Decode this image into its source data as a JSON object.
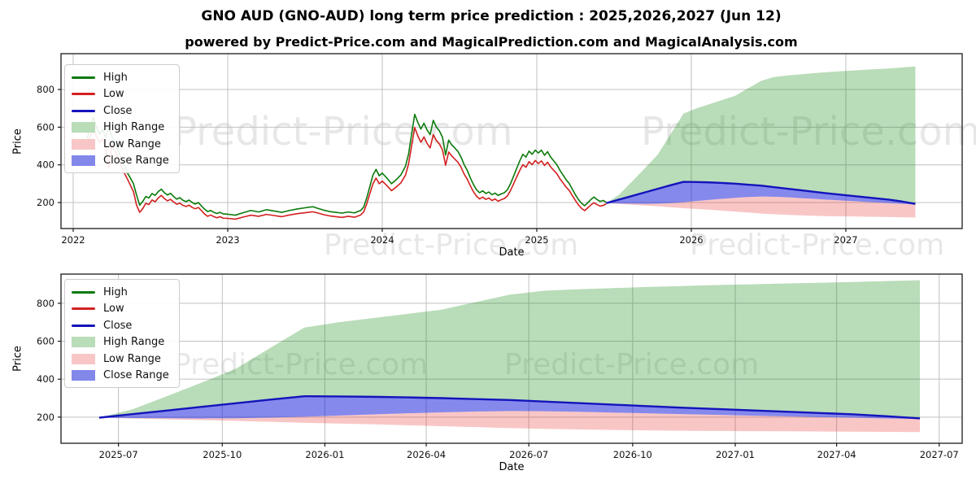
{
  "figure": {
    "title": "GNO AUD (GNO-AUD) long term price prediction : 2025,2026,2027 (Jun 12)",
    "subtitle": "powered by Predict-Price.com and MagicalPrediction.com and MagicalAnalysis.com",
    "watermark": "Predict-Price.com"
  },
  "colors": {
    "high_line": "#0a7a0a",
    "low_line": "#d32020",
    "close_line": "#1414bb",
    "high_range_fill": "#b9dcb9",
    "low_range_fill": "#f8c6c6",
    "close_range_fill": "#8287ea",
    "grid": "#c0c0c0",
    "spine": "#1a1a1a"
  },
  "legend": {
    "items": [
      {
        "label": "High",
        "type": "line",
        "color": "#0a7a0a"
      },
      {
        "label": "Low",
        "type": "line",
        "color": "#d32020"
      },
      {
        "label": "Close",
        "type": "line",
        "color": "#1414bb"
      },
      {
        "label": "High Range",
        "type": "patch",
        "color": "#b9dcb9"
      },
      {
        "label": "Low Range",
        "type": "patch",
        "color": "#f8c6c6"
      },
      {
        "label": "Close Range",
        "type": "patch",
        "color": "#8287ea"
      }
    ]
  },
  "chart_data": [
    {
      "type": "line",
      "title": "",
      "xlabel": "Date",
      "ylabel": "Price",
      "grid": true,
      "legend_position": "upper left",
      "xlim": [
        2021.921,
        2027.753
      ],
      "ylim": [
        62,
        990
      ],
      "xticks": [
        {
          "v": 2022,
          "label": "2022"
        },
        {
          "v": 2023,
          "label": "2023"
        },
        {
          "v": 2024,
          "label": "2024"
        },
        {
          "v": 2025,
          "label": "2025"
        },
        {
          "v": 2026,
          "label": "2026"
        },
        {
          "v": 2027,
          "label": "2027"
        }
      ],
      "yticks": [
        {
          "v": 200,
          "label": "200"
        },
        {
          "v": 400,
          "label": "400"
        },
        {
          "v": 600,
          "label": "600"
        },
        {
          "v": 800,
          "label": "800"
        }
      ],
      "history_series_note": "historical daily High(green)/Low(red) lines, points [year, high, low]",
      "history": [
        [
          2022.09,
          540,
          500
        ],
        [
          2022.11,
          595,
          548
        ],
        [
          2022.13,
          650,
          588
        ],
        [
          2022.15,
          602,
          552
        ],
        [
          2022.17,
          562,
          518
        ],
        [
          2022.19,
          588,
          538
        ],
        [
          2022.21,
          545,
          498
        ],
        [
          2022.23,
          598,
          382
        ],
        [
          2022.25,
          552,
          510
        ],
        [
          2022.27,
          518,
          472
        ],
        [
          2022.29,
          478,
          436
        ],
        [
          2022.31,
          438,
          398
        ],
        [
          2022.33,
          398,
          358
        ],
        [
          2022.35,
          358,
          326
        ],
        [
          2022.37,
          330,
          292
        ],
        [
          2022.39,
          300,
          258
        ],
        [
          2022.41,
          240,
          186
        ],
        [
          2022.43,
          186,
          148
        ],
        [
          2022.45,
          206,
          168
        ],
        [
          2022.47,
          232,
          196
        ],
        [
          2022.49,
          224,
          189
        ],
        [
          2022.51,
          248,
          214
        ],
        [
          2022.53,
          238,
          204
        ],
        [
          2022.55,
          258,
          224
        ],
        [
          2022.57,
          271,
          238
        ],
        [
          2022.59,
          252,
          221
        ],
        [
          2022.61,
          240,
          209
        ],
        [
          2022.63,
          249,
          217
        ],
        [
          2022.65,
          232,
          203
        ],
        [
          2022.67,
          218,
          191
        ],
        [
          2022.69,
          226,
          197
        ],
        [
          2022.71,
          212,
          185
        ],
        [
          2022.73,
          205,
          179
        ],
        [
          2022.75,
          213,
          186
        ],
        [
          2022.77,
          200,
          174
        ],
        [
          2022.79,
          192,
          167
        ],
        [
          2022.81,
          200,
          174
        ],
        [
          2022.83,
          182,
          157
        ],
        [
          2022.85,
          165,
          139
        ],
        [
          2022.87,
          152,
          127
        ],
        [
          2022.89,
          158,
          134
        ],
        [
          2022.91,
          148,
          125
        ],
        [
          2022.93,
          142,
          119
        ],
        [
          2022.95,
          148,
          125
        ],
        [
          2022.97,
          140,
          117
        ],
        [
          2023.0,
          138,
          116
        ],
        [
          2023.05,
          133,
          112
        ],
        [
          2023.1,
          146,
          123
        ],
        [
          2023.15,
          158,
          133
        ],
        [
          2023.2,
          150,
          127
        ],
        [
          2023.25,
          162,
          137
        ],
        [
          2023.3,
          155,
          131
        ],
        [
          2023.35,
          148,
          125
        ],
        [
          2023.4,
          158,
          134
        ],
        [
          2023.45,
          166,
          141
        ],
        [
          2023.5,
          172,
          146
        ],
        [
          2023.55,
          178,
          151
        ],
        [
          2023.58,
          170,
          145
        ],
        [
          2023.62,
          160,
          136
        ],
        [
          2023.66,
          152,
          129
        ],
        [
          2023.7,
          148,
          125
        ],
        [
          2023.74,
          144,
          121
        ],
        [
          2023.78,
          150,
          127
        ],
        [
          2023.82,
          145,
          122
        ],
        [
          2023.86,
          158,
          134
        ],
        [
          2023.88,
          176,
          150
        ],
        [
          2023.9,
          226,
          194
        ],
        [
          2023.92,
          286,
          248
        ],
        [
          2023.94,
          346,
          300
        ],
        [
          2023.96,
          376,
          330
        ],
        [
          2023.98,
          342,
          300
        ],
        [
          2024.0,
          356,
          314
        ],
        [
          2024.03,
          330,
          290
        ],
        [
          2024.06,
          300,
          263
        ],
        [
          2024.09,
          321,
          282
        ],
        [
          2024.12,
          346,
          304
        ],
        [
          2024.15,
          392,
          345
        ],
        [
          2024.17,
          456,
          404
        ],
        [
          2024.19,
          562,
          500
        ],
        [
          2024.21,
          668,
          598
        ],
        [
          2024.23,
          626,
          554
        ],
        [
          2024.25,
          590,
          520
        ],
        [
          2024.27,
          621,
          548
        ],
        [
          2024.29,
          585,
          514
        ],
        [
          2024.31,
          560,
          490
        ],
        [
          2024.33,
          636,
          560
        ],
        [
          2024.35,
          601,
          530
        ],
        [
          2024.37,
          580,
          511
        ],
        [
          2024.39,
          546,
          479
        ],
        [
          2024.41,
          452,
          398
        ],
        [
          2024.43,
          531,
          468
        ],
        [
          2024.45,
          506,
          447
        ],
        [
          2024.47,
          489,
          430
        ],
        [
          2024.49,
          471,
          414
        ],
        [
          2024.51,
          441,
          387
        ],
        [
          2024.53,
          401,
          351
        ],
        [
          2024.55,
          371,
          324
        ],
        [
          2024.57,
          331,
          289
        ],
        [
          2024.59,
          296,
          257
        ],
        [
          2024.61,
          268,
          234
        ],
        [
          2024.63,
          252,
          219
        ],
        [
          2024.65,
          262,
          229
        ],
        [
          2024.67,
          248,
          217
        ],
        [
          2024.69,
          256,
          224
        ],
        [
          2024.71,
          242,
          211
        ],
        [
          2024.73,
          250,
          219
        ],
        [
          2024.75,
          238,
          207
        ],
        [
          2024.77,
          246,
          215
        ],
        [
          2024.79,
          252,
          221
        ],
        [
          2024.81,
          268,
          235
        ],
        [
          2024.83,
          300,
          264
        ],
        [
          2024.85,
          340,
          299
        ],
        [
          2024.87,
          381,
          336
        ],
        [
          2024.89,
          421,
          371
        ],
        [
          2024.91,
          456,
          401
        ],
        [
          2024.93,
          441,
          387
        ],
        [
          2024.95,
          473,
          417
        ],
        [
          2024.97,
          456,
          401
        ],
        [
          2024.99,
          478,
          423
        ],
        [
          2025.01,
          463,
          407
        ],
        [
          2025.03,
          478,
          421
        ],
        [
          2025.05,
          451,
          397
        ],
        [
          2025.07,
          470,
          414
        ],
        [
          2025.09,
          441,
          389
        ],
        [
          2025.11,
          421,
          371
        ],
        [
          2025.13,
          401,
          353
        ],
        [
          2025.15,
          371,
          326
        ],
        [
          2025.17,
          346,
          304
        ],
        [
          2025.19,
          321,
          282
        ],
        [
          2025.21,
          301,
          264
        ],
        [
          2025.23,
          271,
          237
        ],
        [
          2025.25,
          241,
          211
        ],
        [
          2025.27,
          216,
          187
        ],
        [
          2025.29,
          196,
          169
        ],
        [
          2025.31,
          183,
          157
        ],
        [
          2025.33,
          199,
          172
        ],
        [
          2025.35,
          216,
          187
        ],
        [
          2025.37,
          229,
          199
        ],
        [
          2025.39,
          216,
          189
        ],
        [
          2025.41,
          206,
          181
        ],
        [
          2025.43,
          211,
          185
        ],
        [
          2025.45,
          201,
          193
        ]
      ],
      "prediction_note": "monthly forecast Jun-12-2025 to Jun-2027; bands: high range = close..high, close range = close_range_bottom..close, low range = low..close_range_bottom",
      "prediction": {
        "x": [
          2025.45,
          2025.533,
          2025.617,
          2025.7,
          2025.783,
          2025.867,
          2025.95,
          2026.033,
          2026.117,
          2026.2,
          2026.283,
          2026.367,
          2026.45,
          2026.533,
          2026.617,
          2026.7,
          2026.783,
          2026.867,
          2026.95,
          2027.033,
          2027.117,
          2027.2,
          2027.283,
          2027.367,
          2027.45
        ],
        "high": [
          197,
          242,
          312,
          382,
          455,
          565,
          672,
          700,
          722,
          744,
          766,
          806,
          845,
          866,
          874,
          880,
          886,
          891,
          896,
          900,
          904,
          908,
          912,
          917,
          922
        ],
        "close": [
          197,
          216,
          235,
          254,
          273,
          292,
          310,
          309,
          307,
          304,
          300,
          295,
          290,
          282,
          274,
          266,
          258,
          250,
          243,
          236,
          229,
          222,
          215,
          205,
          193
        ],
        "close_range_bottom": [
          197,
          195,
          194,
          193,
          194,
          197,
          202,
          208,
          214,
          220,
          225,
          229,
          232,
          231,
          228,
          224,
          220,
          216,
          212,
          208,
          204,
          200,
          197,
          193,
          190
        ],
        "low": [
          197,
          192,
          188,
          184,
          180,
          175,
          170,
          166,
          162,
          157,
          152,
          147,
          142,
          138,
          135,
          132,
          130,
          128,
          127,
          126,
          125,
          124,
          123,
          122,
          121
        ]
      }
    },
    {
      "type": "line",
      "title": "",
      "xlabel": "Date",
      "ylabel": "Price",
      "grid": true,
      "legend_position": "upper left",
      "xlim": [
        2025.357,
        2027.553
      ],
      "ylim": [
        62,
        954
      ],
      "xticks": [
        {
          "v": 2025.497,
          "label": "2025-07"
        },
        {
          "v": 2025.75,
          "label": "2025-10"
        },
        {
          "v": 2026.0,
          "label": "2026-01"
        },
        {
          "v": 2026.247,
          "label": "2026-04"
        },
        {
          "v": 2026.497,
          "label": "2026-07"
        },
        {
          "v": 2026.75,
          "label": "2026-10"
        },
        {
          "v": 2027.0,
          "label": "2027-01"
        },
        {
          "v": 2027.247,
          "label": "2027-04"
        },
        {
          "v": 2027.497,
          "label": "2027-07"
        }
      ],
      "yticks": [
        {
          "v": 200,
          "label": "200"
        },
        {
          "v": 400,
          "label": "400"
        },
        {
          "v": 600,
          "label": "600"
        },
        {
          "v": 800,
          "label": "800"
        }
      ],
      "prediction_note": "same prediction series as first chart, zoomed"
    }
  ]
}
